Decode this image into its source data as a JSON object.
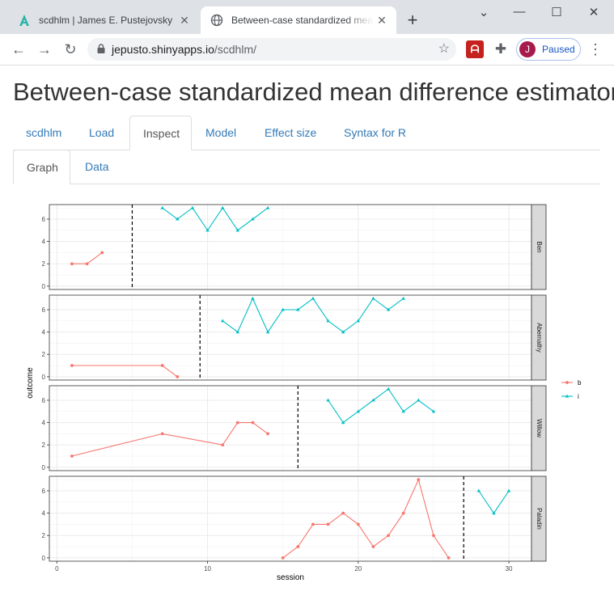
{
  "browser": {
    "tabs": [
      {
        "title": "scdhlm | James E. Pustejovsky",
        "icon": "scdhlm-logo-icon"
      },
      {
        "title": "Between-case standardized mean difference estimator",
        "icon": "globe-icon"
      }
    ],
    "url_host": "jepusto.shinyapps.io",
    "url_path": "/scdhlm/",
    "profile_initial": "J",
    "profile_label": "Paused"
  },
  "page": {
    "title": "Between-case standardized mean difference estimator",
    "nav_tabs": [
      "scdhlm",
      "Load",
      "Inspect",
      "Model",
      "Effect size",
      "Syntax for R"
    ],
    "nav_active": "Inspect",
    "sub_tabs": [
      "Graph",
      "Data"
    ],
    "sub_active": "Graph"
  },
  "colors": {
    "phase_b": "#f8766d",
    "phase_i": "#00bfc4"
  },
  "chart_data": {
    "type": "line",
    "xlabel": "session",
    "ylabel": "outcome",
    "xticks": [
      0,
      10,
      20,
      30
    ],
    "yticks": [
      0,
      2,
      4,
      6
    ],
    "xlim": [
      -0.5,
      31.5
    ],
    "ylim": [
      -0.3,
      7.3
    ],
    "legend": {
      "position": "right",
      "entries": [
        "b",
        "i"
      ]
    },
    "facets": [
      {
        "name": "Ben",
        "phase_change": 5,
        "series": [
          {
            "name": "b",
            "x": [
              1,
              2,
              3
            ],
            "y": [
              2,
              2,
              3
            ]
          },
          {
            "name": "i",
            "x": [
              7,
              8,
              9,
              10,
              11,
              12,
              13,
              14
            ],
            "y": [
              7,
              6,
              7,
              5,
              7,
              5,
              6,
              7
            ]
          }
        ]
      },
      {
        "name": "Abernathy",
        "phase_change": 9.5,
        "series": [
          {
            "name": "b",
            "x": [
              1,
              7,
              8
            ],
            "y": [
              1,
              1,
              0
            ]
          },
          {
            "name": "i",
            "x": [
              11,
              12,
              13,
              14,
              15,
              16,
              17,
              18,
              19,
              20,
              21,
              22,
              23
            ],
            "y": [
              5,
              4,
              7,
              4,
              6,
              6,
              7,
              5,
              4,
              5,
              7,
              6,
              7
            ]
          }
        ]
      },
      {
        "name": "Willow",
        "phase_change": 16,
        "series": [
          {
            "name": "b",
            "x": [
              1,
              7,
              11,
              12,
              13,
              14
            ],
            "y": [
              1,
              3,
              2,
              4,
              4,
              3
            ]
          },
          {
            "name": "i",
            "x": [
              18,
              19,
              20,
              21,
              22,
              23,
              24,
              25
            ],
            "y": [
              6,
              4,
              5,
              6,
              7,
              5,
              6,
              5
            ]
          }
        ]
      },
      {
        "name": "Paladin",
        "phase_change": 27,
        "series": [
          {
            "name": "b",
            "x": [
              15,
              16,
              17,
              18,
              19,
              20,
              21,
              22,
              23,
              24,
              25,
              26
            ],
            "y": [
              0,
              1,
              3,
              3,
              4,
              3,
              1,
              2,
              4,
              7,
              2,
              0
            ]
          },
          {
            "name": "i",
            "x": [
              28,
              29,
              30
            ],
            "y": [
              6,
              4,
              6
            ]
          }
        ]
      }
    ]
  }
}
